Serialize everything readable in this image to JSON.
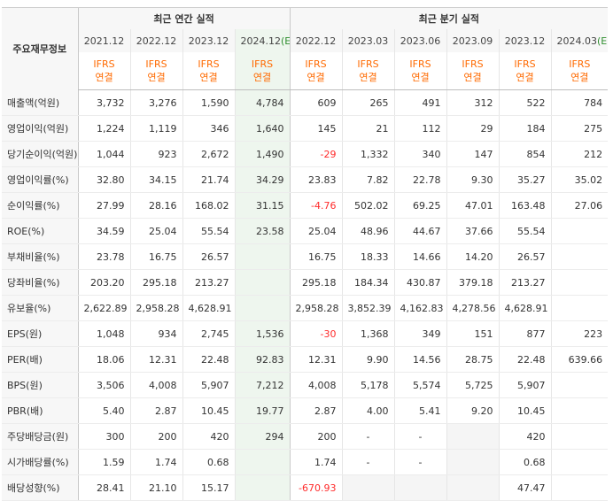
{
  "header": {
    "corner_label": "주요재무정보",
    "annual_label": "최근 연간 실적",
    "quarterly_label": "최근 분기 실적",
    "annual_dates": [
      "2021.12",
      "2022.12",
      "2023.12",
      "2024.12"
    ],
    "annual_est_tag": "(E)",
    "quarterly_dates": [
      "2022.12",
      "2023.03",
      "2023.06",
      "2023.09",
      "2023.12",
      "2024.03"
    ],
    "quarterly_est_tag": "(E)",
    "ifrs_line1": "IFRS",
    "ifrs_line2": "연결"
  },
  "rows": [
    {
      "label": "매출액(억원)",
      "values": [
        "3,732",
        "3,276",
        "1,590",
        "4,784",
        "609",
        "265",
        "491",
        "312",
        "522",
        "784"
      ]
    },
    {
      "label": "영업이익(억원)",
      "values": [
        "1,224",
        "1,119",
        "346",
        "1,640",
        "145",
        "21",
        "112",
        "29",
        "184",
        "275"
      ]
    },
    {
      "label": "당기순이익(억원)",
      "values": [
        "1,044",
        "923",
        "2,672",
        "1,490",
        "-29",
        "1,332",
        "340",
        "147",
        "854",
        "212"
      ]
    },
    {
      "label": "영업이익률(%)",
      "values": [
        "32.80",
        "34.15",
        "21.74",
        "34.29",
        "23.83",
        "7.82",
        "22.78",
        "9.30",
        "35.27",
        "35.02"
      ]
    },
    {
      "label": "순이익률(%)",
      "values": [
        "27.99",
        "28.16",
        "168.02",
        "31.15",
        "-4.76",
        "502.02",
        "69.25",
        "47.01",
        "163.48",
        "27.06"
      ]
    },
    {
      "label": "ROE(%)",
      "values": [
        "34.59",
        "25.04",
        "55.54",
        "23.58",
        "25.04",
        "48.96",
        "44.67",
        "37.66",
        "55.54",
        ""
      ]
    },
    {
      "label": "부채비율(%)",
      "values": [
        "23.78",
        "16.75",
        "26.57",
        "",
        "16.75",
        "18.33",
        "14.66",
        "14.20",
        "26.57",
        ""
      ]
    },
    {
      "label": "당좌비율(%)",
      "values": [
        "203.20",
        "295.18",
        "213.27",
        "",
        "295.18",
        "184.34",
        "430.87",
        "379.18",
        "213.27",
        ""
      ]
    },
    {
      "label": "유보율(%)",
      "values": [
        "2,622.89",
        "2,958.28",
        "4,628.91",
        "",
        "2,958.28",
        "3,852.39",
        "4,162.83",
        "4,278.56",
        "4,628.91",
        ""
      ]
    },
    {
      "label": "EPS(원)",
      "values": [
        "1,048",
        "934",
        "2,745",
        "1,536",
        "-30",
        "1,368",
        "349",
        "151",
        "877",
        "223"
      ]
    },
    {
      "label": "PER(배)",
      "values": [
        "18.06",
        "12.31",
        "22.48",
        "92.83",
        "12.31",
        "9.90",
        "14.56",
        "28.75",
        "22.48",
        "639.66"
      ]
    },
    {
      "label": "BPS(원)",
      "values": [
        "3,506",
        "4,008",
        "5,907",
        "7,212",
        "4,008",
        "5,178",
        "5,574",
        "5,725",
        "5,907",
        ""
      ]
    },
    {
      "label": "PBR(배)",
      "values": [
        "5.40",
        "2.87",
        "10.45",
        "19.77",
        "2.87",
        "4.00",
        "5.41",
        "9.20",
        "10.45",
        ""
      ]
    },
    {
      "label": "주당배당금(원)",
      "values": [
        "300",
        "200",
        "420",
        "294",
        "200",
        "-",
        "-",
        "",
        "420",
        ""
      ]
    },
    {
      "label": "시가배당률(%)",
      "values": [
        "1.59",
        "1.74",
        "0.68",
        "",
        "1.74",
        "-",
        "-",
        "",
        "0.68",
        ""
      ]
    },
    {
      "label": "배당성향(%)",
      "values": [
        "28.41",
        "21.10",
        "15.17",
        "",
        "-670.93",
        "",
        "",
        "",
        "47.47",
        ""
      ]
    }
  ]
}
